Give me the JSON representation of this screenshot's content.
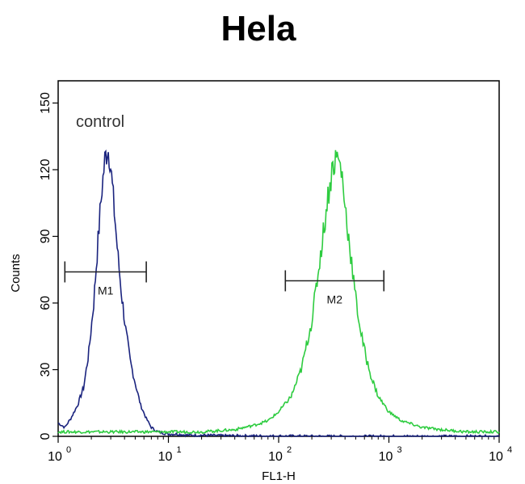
{
  "chart_data": {
    "type": "line",
    "title": "Hela",
    "xlabel": "FL1-H",
    "ylabel": "Counts",
    "x_scale": "log",
    "xlim": [
      1,
      10000
    ],
    "ylim": [
      0,
      160
    ],
    "x_ticks": [
      {
        "value": 1,
        "base": "10",
        "exp": "0"
      },
      {
        "value": 10,
        "base": "10",
        "exp": "1"
      },
      {
        "value": 100,
        "base": "10",
        "exp": "2"
      },
      {
        "value": 1000,
        "base": "10",
        "exp": "3"
      },
      {
        "value": 10000,
        "base": "10",
        "exp": "4"
      }
    ],
    "y_ticks": [
      {
        "value": 0,
        "label": "0"
      },
      {
        "value": 30,
        "label": "30"
      },
      {
        "value": 60,
        "label": "60"
      },
      {
        "value": 90,
        "label": "90"
      },
      {
        "value": 120,
        "label": "120"
      },
      {
        "value": 150,
        "label": "150"
      }
    ],
    "annotation": "control",
    "grid": false,
    "series": [
      {
        "color": "#1a237e",
        "x": [
          1.0,
          1.15,
          1.3,
          1.5,
          1.7,
          1.9,
          2.1,
          2.3,
          2.5,
          2.65,
          2.8,
          2.95,
          3.1,
          3.3,
          3.5,
          3.8,
          4.1,
          4.5,
          5.0,
          5.6,
          6.3,
          7.0,
          8.0,
          10.0,
          12.0,
          15.0,
          20.0,
          30.0,
          50.0,
          100.0,
          300.0,
          1000.0,
          10000.0
        ],
        "y": [
          6,
          4,
          8,
          14,
          22,
          38,
          60,
          88,
          112,
          124,
          130,
          126,
          112,
          96,
          80,
          62,
          48,
          34,
          24,
          14,
          8,
          4,
          2,
          1,
          1,
          0.5,
          0.5,
          0.3,
          0.2,
          0.1,
          0,
          0,
          0
        ]
      },
      {
        "color": "#2ecc40",
        "x": [
          1.0,
          3.0,
          10.0,
          20.0,
          40.0,
          60.0,
          80.0,
          100.0,
          130.0,
          160.0,
          200.0,
          240.0,
          280.0,
          310.0,
          340.0,
          370.0,
          400.0,
          450.0,
          500.0,
          560.0,
          630.0,
          700.0,
          800.0,
          1000.0,
          1300.0,
          2000.0,
          3000.0,
          5000.0,
          10000.0
        ],
        "y": [
          2,
          2,
          2,
          2,
          3,
          5,
          7,
          11,
          18,
          30,
          52,
          82,
          108,
          122,
          126,
          120,
          104,
          82,
          62,
          46,
          34,
          26,
          18,
          11,
          7,
          4,
          3,
          2,
          2
        ]
      }
    ],
    "markers": [
      {
        "label": "M1",
        "x_start": 1.15,
        "x_end": 6.3,
        "y": 74
      },
      {
        "label": "M2",
        "x_start": 115,
        "x_end": 900,
        "y": 70
      }
    ]
  }
}
